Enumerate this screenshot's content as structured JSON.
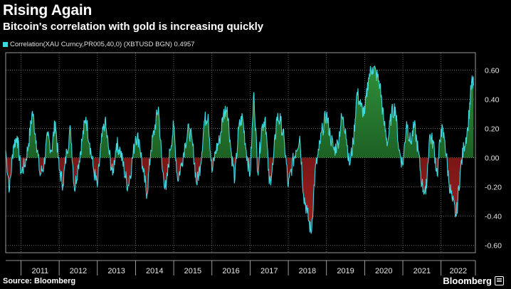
{
  "header": {
    "title": "Rising Again",
    "subtitle": "Bitcoin's correlation with gold is increasing quickly"
  },
  "legend": {
    "label": "Correlation(XAU Curncy,PR005,40,0) (XBTUSD BGN) 0.4957",
    "swatch_color": "#3fd7e0"
  },
  "footer": {
    "source": "Source: Bloomberg",
    "brand": "Bloomberg"
  },
  "colors": {
    "line": "#3fd7e0",
    "positive_fill_top": "#2f8f3a",
    "positive_fill_bottom": "#0e3a12",
    "negative_fill_top": "#4a0c0c",
    "negative_fill_bottom": "#a01f1f",
    "grid": "#8a8a8a",
    "background": "#000000"
  },
  "chart_data": {
    "type": "area",
    "title": "Rising Again",
    "subtitle": "Bitcoin's correlation with gold is increasing quickly",
    "xlabel": "",
    "ylabel": "",
    "ylim": [
      -0.65,
      0.72
    ],
    "y_ticks": [
      0.6,
      0.4,
      0.2,
      0.0,
      -0.2,
      -0.4,
      -0.6
    ],
    "y_tick_labels": [
      "0.60",
      "0.40",
      "0.20",
      "0.00",
      "-0.20",
      "-0.40",
      "-0.60"
    ],
    "x_range": [
      2010.6,
      2022.9
    ],
    "x_tick_labels": [
      "2011",
      "2012",
      "2013",
      "2014",
      "2015",
      "2016",
      "2017",
      "2018",
      "2019",
      "2020",
      "2021",
      "2022"
    ],
    "x_year_boundaries": [
      2011,
      2012,
      2013,
      2014,
      2015,
      2016,
      2017,
      2018,
      2019,
      2020,
      2021,
      2022
    ],
    "grid": true,
    "last_value": 0.4957,
    "series": [
      {
        "name": "Correlation(XAU Curncy,PR005,40,0) (XBTUSD BGN)",
        "x": [
          2010.6,
          2010.7,
          2010.8,
          2010.9,
          2011.0,
          2011.1,
          2011.2,
          2011.3,
          2011.4,
          2011.5,
          2011.6,
          2011.7,
          2011.8,
          2011.9,
          2012.0,
          2012.1,
          2012.2,
          2012.3,
          2012.4,
          2012.5,
          2012.6,
          2012.7,
          2012.8,
          2012.9,
          2013.0,
          2013.1,
          2013.2,
          2013.3,
          2013.4,
          2013.5,
          2013.6,
          2013.7,
          2013.8,
          2013.9,
          2014.0,
          2014.1,
          2014.2,
          2014.3,
          2014.4,
          2014.5,
          2014.6,
          2014.7,
          2014.8,
          2014.9,
          2015.0,
          2015.1,
          2015.2,
          2015.3,
          2015.4,
          2015.5,
          2015.6,
          2015.7,
          2015.8,
          2015.9,
          2016.0,
          2016.1,
          2016.2,
          2016.3,
          2016.4,
          2016.5,
          2016.6,
          2016.7,
          2016.8,
          2016.9,
          2017.0,
          2017.1,
          2017.2,
          2017.3,
          2017.4,
          2017.5,
          2017.6,
          2017.7,
          2017.8,
          2017.9,
          2018.0,
          2018.1,
          2018.2,
          2018.3,
          2018.4,
          2018.5,
          2018.6,
          2018.7,
          2018.8,
          2018.9,
          2019.0,
          2019.1,
          2019.2,
          2019.3,
          2019.4,
          2019.5,
          2019.6,
          2019.7,
          2019.8,
          2019.9,
          2020.0,
          2020.1,
          2020.2,
          2020.3,
          2020.4,
          2020.5,
          2020.6,
          2020.7,
          2020.8,
          2020.9,
          2021.0,
          2021.1,
          2021.2,
          2021.3,
          2021.4,
          2021.5,
          2021.6,
          2021.7,
          2021.8,
          2021.9,
          2022.0,
          2022.1,
          2022.2,
          2022.3,
          2022.4,
          2022.5,
          2022.6,
          2022.7,
          2022.8,
          2022.85
        ],
        "values": [
          0.05,
          -0.22,
          0.08,
          0.15,
          -0.1,
          -0.05,
          0.1,
          0.32,
          0.12,
          -0.12,
          -0.05,
          0.15,
          0.05,
          0.25,
          -0.08,
          -0.18,
          0.05,
          0.2,
          -0.22,
          -0.05,
          0.12,
          0.28,
          0.1,
          -0.08,
          -0.2,
          0.1,
          0.25,
          0.05,
          -0.12,
          0.1,
          0.05,
          -0.08,
          -0.2,
          -0.05,
          0.15,
          0.12,
          -0.1,
          -0.25,
          0.05,
          0.2,
          0.35,
          -0.08,
          -0.22,
          0.05,
          0.22,
          -0.15,
          -0.05,
          0.1,
          0.2,
          0.08,
          -0.18,
          -0.05,
          0.25,
          0.3,
          -0.1,
          0.05,
          0.12,
          0.3,
          0.35,
          0.05,
          -0.15,
          0.2,
          0.28,
          0.05,
          -0.12,
          0.45,
          -0.1,
          0.2,
          0.28,
          -0.18,
          -0.05,
          0.28,
          0.25,
          0.1,
          -0.2,
          -0.05,
          0.05,
          0.15,
          -0.25,
          -0.38,
          -0.52,
          -0.1,
          0.05,
          0.2,
          0.3,
          0.15,
          0.05,
          0.1,
          0.28,
          0.2,
          -0.05,
          0.1,
          0.45,
          0.35,
          0.3,
          0.55,
          0.62,
          0.58,
          0.5,
          0.25,
          0.1,
          0.3,
          0.35,
          0.05,
          -0.05,
          0.25,
          0.1,
          0.22,
          0.05,
          -0.18,
          -0.25,
          0.15,
          0.1,
          -0.12,
          0.2,
          0.12,
          -0.15,
          -0.3,
          -0.4,
          -0.1,
          0.08,
          0.2,
          0.52,
          0.4957
        ]
      }
    ]
  }
}
